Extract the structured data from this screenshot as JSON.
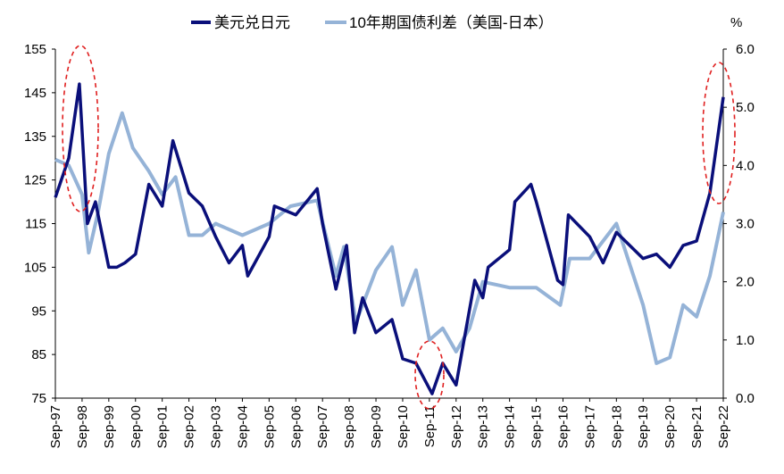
{
  "chart_data": {
    "type": "line",
    "title": "",
    "legend": [
      "美元兑日元",
      "10年期国债利差（美国-日本）"
    ],
    "legend_position": "top",
    "left_axis": {
      "ylim": [
        75,
        155
      ],
      "ticks": [
        "155",
        "145",
        "135",
        "125",
        "115",
        "105",
        "95",
        "85",
        "75"
      ]
    },
    "right_axis": {
      "unit_label": "%",
      "ylim": [
        0,
        6
      ],
      "ticks": [
        "6.0",
        "5.0",
        "4.0",
        "3.0",
        "2.0",
        "1.0",
        "0.0"
      ]
    },
    "x_ticks": [
      "Sep-97",
      "Sep-98",
      "Sep-99",
      "Sep-00",
      "Sep-01",
      "Sep-02",
      "Sep-03",
      "Sep-04",
      "Sep-05",
      "Sep-06",
      "Sep-07",
      "Sep-08",
      "Sep-09",
      "Sep-10",
      "Sep-11",
      "Sep-12",
      "Sep-13",
      "Sep-14",
      "Sep-15",
      "Sep-16",
      "Sep-17",
      "Sep-18",
      "Sep-19",
      "Sep-20",
      "Sep-21",
      "Sep-22"
    ],
    "xlim": [
      1997.7,
      2022.7
    ],
    "series": [
      {
        "name": "美元兑日元",
        "axis": "left",
        "color": "#0a0f7a",
        "x": [
          1997.7,
          1998.2,
          1998.6,
          1998.9,
          1999.2,
          1999.7,
          2000.0,
          2000.3,
          2000.7,
          2001.2,
          2001.7,
          2002.1,
          2002.7,
          2003.2,
          2003.7,
          2004.2,
          2004.7,
          2004.9,
          2005.7,
          2005.9,
          2006.7,
          2007.5,
          2007.7,
          2008.2,
          2008.6,
          2008.9,
          2009.2,
          2009.7,
          2010.3,
          2010.7,
          2011.2,
          2011.8,
          2012.2,
          2012.7,
          2012.9,
          2013.4,
          2013.7,
          2013.9,
          2014.7,
          2014.9,
          2015.5,
          2015.7,
          2016.5,
          2016.7,
          2016.9,
          2017.7,
          2018.2,
          2018.7,
          2019.7,
          2020.2,
          2020.7,
          2021.2,
          2021.7,
          2022.2,
          2022.7
        ],
        "values": [
          121,
          130,
          147,
          115,
          120,
          105,
          105,
          106,
          108,
          124,
          119,
          134,
          122,
          119,
          112,
          106,
          110,
          103,
          112,
          119,
          117,
          123,
          115,
          100,
          110,
          90,
          98,
          90,
          93,
          84,
          83,
          76,
          83,
          78,
          85,
          102,
          98,
          105,
          109,
          120,
          124,
          120,
          102,
          101,
          117,
          112,
          106,
          113,
          107,
          108,
          105,
          110,
          111,
          122,
          144
        ]
      },
      {
        "name": "10年期国债利差（美国-日本）",
        "axis": "right",
        "color": "#95b3d7",
        "x": [
          1997.7,
          1998.2,
          1998.7,
          1998.95,
          1999.3,
          1999.7,
          2000.2,
          2000.6,
          2001.2,
          2001.7,
          2002.2,
          2002.7,
          2003.2,
          2003.7,
          2004.7,
          2005.7,
          2006.5,
          2007.5,
          2008.2,
          2008.5,
          2008.95,
          2009.7,
          2010.3,
          2010.7,
          2011.2,
          2011.7,
          2012.2,
          2012.7,
          2013.2,
          2013.7,
          2014.7,
          2015.7,
          2016.6,
          2016.95,
          2017.7,
          2018.7,
          2019.7,
          2020.2,
          2020.7,
          2021.2,
          2021.7,
          2022.2,
          2022.7
        ],
        "values": [
          4.1,
          4.0,
          3.5,
          2.5,
          3.2,
          4.2,
          4.9,
          4.3,
          3.9,
          3.5,
          3.8,
          2.8,
          2.8,
          3.0,
          2.8,
          3.0,
          3.3,
          3.4,
          2.1,
          2.6,
          1.3,
          2.2,
          2.6,
          1.6,
          2.2,
          1.0,
          1.2,
          0.8,
          1.2,
          2.0,
          1.9,
          1.9,
          1.6,
          2.4,
          2.4,
          3.0,
          1.6,
          0.6,
          0.7,
          1.6,
          1.4,
          2.1,
          3.2
        ]
      }
    ]
  }
}
